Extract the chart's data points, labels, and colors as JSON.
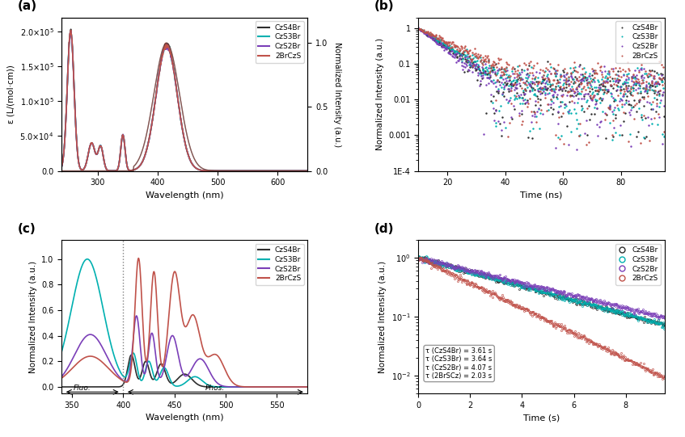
{
  "colors": {
    "CzS4Br": "#2d2d2d",
    "CzS3Br": "#00b0b0",
    "CzS2Br": "#7b3fb8",
    "2BrCzS": "#c0524a"
  },
  "panel_labels": [
    "(a)",
    "(b)",
    "(c)",
    "(d)"
  ],
  "panel_a": {
    "xlabel": "Wavelength (nm)",
    "ylabel": "ε (L/(mol·cm))",
    "ylabel2": "Normalized Intensity (a.u.)",
    "xlim": [
      240,
      650
    ],
    "ylim": [
      0,
      220000.0
    ],
    "ylim2": [
      0,
      1.2
    ],
    "yticks": [
      0,
      50000.0,
      100000.0,
      150000.0,
      200000.0
    ],
    "ytick_labels": [
      "0.0",
      "5.0×10⁴",
      "1.0×10⁵",
      "1.5×10⁵",
      "2.0×10⁵"
    ],
    "yticks2": [
      0.0,
      0.5,
      1.0
    ],
    "xticks": [
      300,
      400,
      500,
      600
    ]
  },
  "panel_b": {
    "xlabel": "Time (ns)",
    "ylabel": "Normalized Intensity (a.u.)",
    "xlim": [
      10,
      95
    ],
    "ylim": [
      0.0001,
      2
    ],
    "xticks": [
      20,
      40,
      60,
      80
    ]
  },
  "panel_c": {
    "xlabel": "Wavelength (nm)",
    "ylabel": "Normalized Intensity (a.u.)",
    "xlim": [
      340,
      580
    ],
    "ylim": [
      -0.05,
      1.15
    ],
    "xticks": [
      350,
      400,
      450,
      500,
      550
    ],
    "fluo_label": "Fluo.",
    "phos_label": "Phos.",
    "divider_x": 400
  },
  "panel_d": {
    "xlabel": "Time (s)",
    "ylabel": "Normalized Intensity (a.u.)",
    "xlim": [
      0,
      9.5
    ],
    "ylim": [
      0.005,
      2
    ],
    "xticks": [
      0,
      2,
      4,
      6,
      8
    ],
    "annotations": [
      "τ (CzS4Br) = 3.61 s",
      "τ (CzS3Br) = 3.64 s",
      "τ (CzS2Br) = 4.07 s",
      "τ (2BrSCz) = 2.03 s"
    ]
  }
}
